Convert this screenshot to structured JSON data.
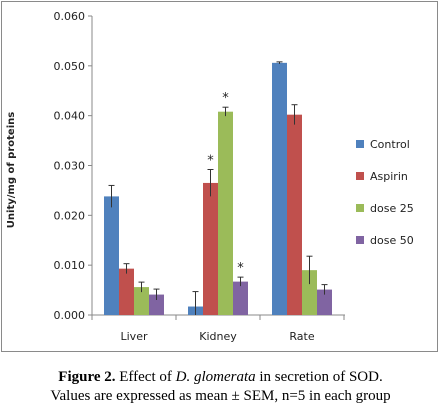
{
  "chart_data": {
    "type": "bar",
    "categories": [
      "Liver",
      "Kidney",
      "Rate"
    ],
    "series": [
      {
        "name": "Control",
        "color": "#4f81bd",
        "values": [
          0.0238,
          0.0017,
          0.0506
        ],
        "errors": [
          0.0022,
          0.003,
          0.0002
        ]
      },
      {
        "name": "Aspirin",
        "color": "#c0504d",
        "values": [
          0.0093,
          0.0265,
          0.0402
        ],
        "errors": [
          0.001,
          0.0027,
          0.002
        ]
      },
      {
        "name": "dose 25",
        "color": "#9bbb59",
        "values": [
          0.0056,
          0.0408,
          0.009
        ],
        "errors": [
          0.001,
          0.0009,
          0.0028
        ]
      },
      {
        "name": "dose 50",
        "color": "#8064a2",
        "values": [
          0.0041,
          0.0067,
          0.0051
        ],
        "errors": [
          0.0011,
          0.0009,
          0.001
        ]
      }
    ],
    "significance": [
      {
        "category": "Kidney",
        "series": "Aspirin",
        "label": "*"
      },
      {
        "category": "Kidney",
        "series": "dose 25",
        "label": "*"
      },
      {
        "category": "Kidney",
        "series": "dose 50",
        "label": "*"
      }
    ],
    "ylabel": "Unity/mg of proteins",
    "xlabel": "",
    "ylim": [
      0,
      0.06
    ],
    "yticks": [
      "0.000",
      "0.010",
      "0.020",
      "0.030",
      "0.040",
      "0.050",
      "0.060"
    ],
    "grid": false,
    "legend_position": "right"
  },
  "caption": {
    "figure_label": "Figure 2.",
    "text_before": " Effect of ",
    "species": "D. glomerata",
    "text_after": " in secretion of SOD.",
    "line2": "Values are expressed as mean ± SEM, n=5 in each group"
  }
}
